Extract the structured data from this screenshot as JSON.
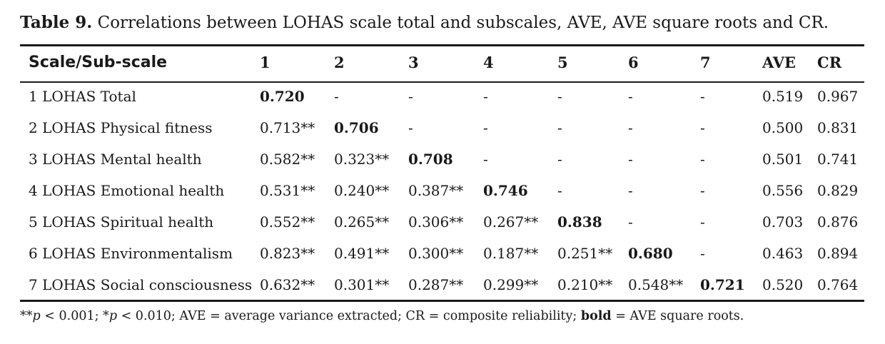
{
  "caption": {
    "label": "Table 9.",
    "text": " Correlations between LOHAS scale total and subscales, AVE, AVE square roots and CR."
  },
  "columns": [
    "Scale/Sub-scale",
    "1",
    "2",
    "3",
    "4",
    "5",
    "6",
    "7",
    "AVE",
    "CR"
  ],
  "rows": [
    {
      "name": "1 LOHAS Total",
      "cells": [
        "0.720",
        "-",
        "-",
        "-",
        "-",
        "-",
        "-",
        "0.519",
        "0.967"
      ],
      "bold": 0
    },
    {
      "name": "2 LOHAS Physical fitness",
      "cells": [
        "0.713**",
        "0.706",
        "-",
        "-",
        "-",
        "-",
        "-",
        "0.500",
        "0.831"
      ],
      "bold": 1
    },
    {
      "name": "3 LOHAS Mental health",
      "cells": [
        "0.582**",
        "0.323**",
        "0.708",
        "-",
        "-",
        "-",
        "-",
        "0.501",
        "0.741"
      ],
      "bold": 2
    },
    {
      "name": "4 LOHAS Emotional health",
      "cells": [
        "0.531**",
        "0.240**",
        "0.387**",
        "0.746",
        "-",
        "-",
        "-",
        "0.556",
        "0.829"
      ],
      "bold": 3
    },
    {
      "name": "5 LOHAS Spiritual health",
      "cells": [
        "0.552**",
        "0.265**",
        "0.306**",
        "0.267**",
        "0.838",
        "-",
        "-",
        "0.703",
        "0.876"
      ],
      "bold": 4
    },
    {
      "name": "6 LOHAS Environmentalism",
      "cells": [
        "0.823**",
        "0.491**",
        "0.300**",
        "0.187**",
        "0.251**",
        "0.680",
        "-",
        "0.463",
        "0.894"
      ],
      "bold": 5
    },
    {
      "name": "7 LOHAS Social consciousness",
      "cells": [
        "0.632**",
        "0.301**",
        "0.287**",
        "0.299**",
        "0.210**",
        "0.548**",
        "0.721",
        "0.520",
        "0.764"
      ],
      "bold": 6
    }
  ],
  "footnote": {
    "p1_prefix": "**",
    "p1_var": "p",
    "p1_rest": " < 0.001; *",
    "p2_var": "p",
    "p2_rest": " < 0.010; AVE = average variance extracted; CR = composite reliability; ",
    "bold_word": "bold",
    "tail": " = AVE square roots."
  }
}
